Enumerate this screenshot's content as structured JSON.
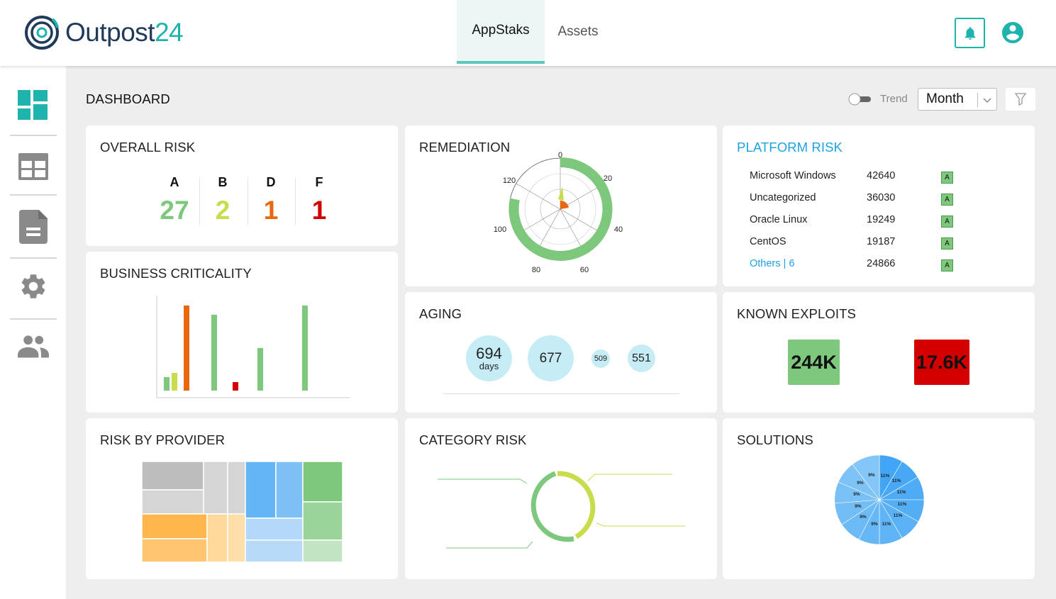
{
  "brand": {
    "name_part1": "Outpost",
    "name_part2": "24"
  },
  "nav": {
    "tabs": [
      {
        "label": "AppStaks",
        "active": true
      },
      {
        "label": "Assets",
        "active": false
      }
    ]
  },
  "header": {
    "icons": [
      "bell-icon",
      "user-account-icon"
    ]
  },
  "sidebar": {
    "items": [
      "dashboard-icon",
      "grid-view-icon",
      "report-document-icon",
      "settings-gear-icon",
      "users-group-icon"
    ]
  },
  "dashboard": {
    "title": "DASHBOARD",
    "trend_label": "Trend",
    "trend_enabled": false,
    "period": "Month"
  },
  "colors": {
    "accent": "#1fb3ad",
    "green": "#7ec87e",
    "yellow": "#c9dc4c",
    "orange": "#e8670f",
    "red": "#d40000",
    "link": "#1ea2e0"
  },
  "overall_risk": {
    "title": "OVERALL RISK",
    "grades": [
      {
        "letter": "A",
        "value": "27",
        "color": "#7ec87e"
      },
      {
        "letter": "B",
        "value": "2",
        "color": "#c9dc4c"
      },
      {
        "letter": "D",
        "value": "1",
        "color": "#e8670f"
      },
      {
        "letter": "F",
        "value": "1",
        "color": "#d40000"
      }
    ]
  },
  "remediation": {
    "title": "REMEDIATION",
    "axis_ticks": [
      "0",
      "20",
      "40",
      "60",
      "80",
      "100",
      "120"
    ]
  },
  "platform_risk": {
    "title": "PLATFORM RISK",
    "rows": [
      {
        "name": "Microsoft Windows",
        "value": "42640",
        "grade": "A"
      },
      {
        "name": "Uncategorized",
        "value": "36030",
        "grade": "A"
      },
      {
        "name": "Oracle Linux",
        "value": "19249",
        "grade": "A"
      },
      {
        "name": "CentOS",
        "value": "19187",
        "grade": "A"
      },
      {
        "name": "Others | 6",
        "value": "24866",
        "grade": "A",
        "is_link": true
      }
    ]
  },
  "business_criticality": {
    "title": "BUSINESS CRITICALITY"
  },
  "aging": {
    "title": "AGING",
    "bubbles": [
      {
        "value": "694",
        "unit": "days"
      },
      {
        "value": "677"
      },
      {
        "value": "509"
      },
      {
        "value": "551"
      }
    ]
  },
  "known_exploits": {
    "title": "KNOWN EXPLOITS",
    "items": [
      {
        "value": "244K",
        "color": "#7ec87e"
      },
      {
        "value": "17.6K",
        "color": "#d40000"
      }
    ]
  },
  "risk_by_provider": {
    "title": "RISK BY PROVIDER"
  },
  "category_risk": {
    "title": "CATEGORY RISK"
  },
  "solutions": {
    "title": "SOLUTIONS",
    "slice_labels": [
      "11%",
      "11%",
      "11%",
      "11%",
      "11%",
      "11%",
      "9%",
      "9%",
      "9%",
      "9%",
      "9%",
      "9%"
    ]
  }
}
